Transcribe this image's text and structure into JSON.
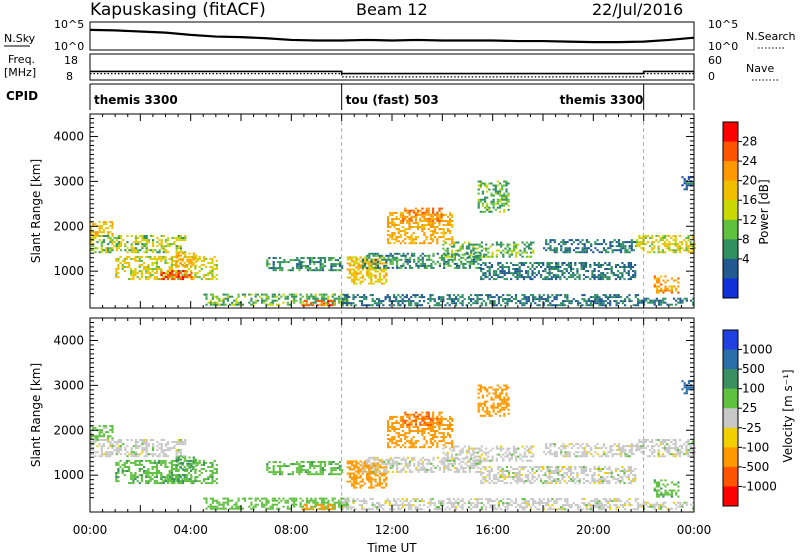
{
  "header": {
    "station": "Kapuskasing (fitACF)",
    "beam": "Beam 12",
    "date": "22/Jul/2016"
  },
  "strips": {
    "nsky_label": "N.Sky",
    "nsky_ticks": [
      "10^5",
      "10^0"
    ],
    "nsearch_label": "N.Search",
    "nsearch_ticks": [
      "10^5",
      "10^0"
    ],
    "freq_label": "Freq.",
    "freq_unit": "[MHz]",
    "freq_ticks": [
      "18",
      "8"
    ],
    "nave_label": "Nave",
    "nave_ticks": [
      "60",
      "0"
    ],
    "cpid_label": "CPID",
    "cpid_segments": [
      {
        "label": "themis 3300",
        "start": 0,
        "end": 10
      },
      {
        "label": "tou (fast) 503",
        "start": 10,
        "end": 22
      },
      {
        "label": "themis 3300",
        "start": 22,
        "end": 24
      }
    ]
  },
  "axes": {
    "x_ticks": [
      "00:00",
      "04:00",
      "08:00",
      "12:00",
      "16:00",
      "20:00",
      "00:00"
    ],
    "x_label": "Time UT",
    "y_label": "Slant Range [km]",
    "y_ticks": [
      "4000",
      "3000",
      "2000",
      "1000"
    ]
  },
  "power_scale": {
    "label": "Power [dB]",
    "ticks": [
      "28",
      "24",
      "20",
      "16",
      "12",
      "8",
      "4"
    ],
    "colors": [
      "#ff0000",
      "#ff5500",
      "#ff9900",
      "#f0c000",
      "#c8d800",
      "#60c040",
      "#309060",
      "#205a90",
      "#1030d8"
    ]
  },
  "velocity_scale": {
    "label": "Velocity [m s⁻¹]",
    "ticks": [
      "1000",
      "500",
      "100",
      "25",
      "-25",
      "-100",
      "-500",
      "-1000"
    ],
    "colors": [
      "#2040e0",
      "#2a6ea8",
      "#3a9060",
      "#60c040",
      "#c8c8c8",
      "#f0d000",
      "#ff9900",
      "#ff5500",
      "#ff0000"
    ]
  },
  "chart_data": {
    "type": "heatmap",
    "x_range_hours": [
      0,
      24
    ],
    "y_range_km": [
      180,
      4500
    ],
    "mode_change_hours": [
      10,
      22
    ],
    "nsky_series": [
      [
        0,
        3.6
      ],
      [
        1,
        3.5
      ],
      [
        2,
        3.3
      ],
      [
        3,
        3.1
      ],
      [
        4,
        2.7
      ],
      [
        5,
        2.4
      ],
      [
        6,
        2.3
      ],
      [
        7,
        2.1
      ],
      [
        8,
        1.8
      ],
      [
        9,
        1.7
      ],
      [
        10,
        1.7
      ],
      [
        11,
        1.8
      ],
      [
        12,
        1.7
      ],
      [
        13,
        1.8
      ],
      [
        14,
        1.7
      ],
      [
        15,
        1.7
      ],
      [
        16,
        1.7
      ],
      [
        17,
        1.6
      ],
      [
        18,
        1.6
      ],
      [
        19,
        1.5
      ],
      [
        20,
        1.4
      ],
      [
        21,
        1.4
      ],
      [
        22,
        1.5
      ],
      [
        23,
        1.8
      ],
      [
        24,
        2.2
      ]
    ],
    "freq_mhz": [
      [
        0,
        11
      ],
      [
        10,
        11
      ],
      [
        10,
        10
      ],
      [
        22,
        10
      ],
      [
        22,
        11
      ],
      [
        24,
        11
      ]
    ],
    "nave": [
      [
        0,
        12
      ],
      [
        10,
        12
      ],
      [
        10,
        3
      ],
      [
        22,
        3
      ],
      [
        22,
        12
      ],
      [
        24,
        12
      ]
    ],
    "echo_regions": [
      {
        "t0": 0.0,
        "t1": 3.8,
        "r0": 1400,
        "r1": 1800,
        "power": 14,
        "velocity": 0
      },
      {
        "t0": 0.0,
        "t1": 0.9,
        "r0": 1800,
        "r1": 2100,
        "power": 18,
        "velocity": 50
      },
      {
        "t0": 1.0,
        "t1": 5.0,
        "r0": 800,
        "r1": 1300,
        "power": 16,
        "velocity": 80
      },
      {
        "t0": 2.8,
        "t1": 4.0,
        "r0": 800,
        "r1": 1000,
        "power": 26,
        "velocity": 90
      },
      {
        "t0": 3.4,
        "t1": 4.2,
        "r0": 1100,
        "r1": 1400,
        "power": 20,
        "velocity": 90
      },
      {
        "t0": 4.5,
        "t1": 10.2,
        "r0": 230,
        "r1": 500,
        "power": 12,
        "velocity": 60
      },
      {
        "t0": 7.0,
        "t1": 10.0,
        "r0": 1000,
        "r1": 1300,
        "power": 10,
        "velocity": 80
      },
      {
        "t0": 8.4,
        "t1": 9.8,
        "r0": 220,
        "r1": 350,
        "power": 26,
        "velocity": -300
      },
      {
        "t0": 10.0,
        "t1": 21.8,
        "r0": 220,
        "r1": 450,
        "power": 8,
        "velocity": 0
      },
      {
        "t0": 10.2,
        "t1": 11.8,
        "r0": 700,
        "r1": 1300,
        "power": 18,
        "velocity": -150
      },
      {
        "t0": 10.8,
        "t1": 15.5,
        "r0": 1050,
        "r1": 1400,
        "power": 10,
        "velocity": 0
      },
      {
        "t0": 11.8,
        "t1": 14.4,
        "r0": 1600,
        "r1": 2300,
        "power": 20,
        "velocity": -450
      },
      {
        "t0": 12.4,
        "t1": 14.0,
        "r0": 2100,
        "r1": 2400,
        "power": 24,
        "velocity": -500
      },
      {
        "t0": 15.4,
        "t1": 16.6,
        "r0": 2300,
        "r1": 3000,
        "power": 12,
        "velocity": -300
      },
      {
        "t0": 14.0,
        "t1": 17.6,
        "r0": 1300,
        "r1": 1650,
        "power": 12,
        "velocity": 0
      },
      {
        "t0": 15.5,
        "t1": 21.7,
        "r0": 800,
        "r1": 1200,
        "power": 8,
        "velocity": 0
      },
      {
        "t0": 18.0,
        "t1": 21.7,
        "r0": 1400,
        "r1": 1700,
        "power": 8,
        "velocity": 0
      },
      {
        "t0": 21.7,
        "t1": 24.0,
        "r0": 1400,
        "r1": 1800,
        "power": 16,
        "velocity": 0
      },
      {
        "t0": 22.4,
        "t1": 23.4,
        "r0": 500,
        "r1": 900,
        "power": 22,
        "velocity": 80
      },
      {
        "t0": 21.8,
        "t1": 24.0,
        "r0": 230,
        "r1": 400,
        "power": 8,
        "velocity": 0
      },
      {
        "t0": 23.5,
        "t1": 24.0,
        "r0": 2800,
        "r1": 3100,
        "power": 6,
        "velocity": 600
      }
    ]
  }
}
